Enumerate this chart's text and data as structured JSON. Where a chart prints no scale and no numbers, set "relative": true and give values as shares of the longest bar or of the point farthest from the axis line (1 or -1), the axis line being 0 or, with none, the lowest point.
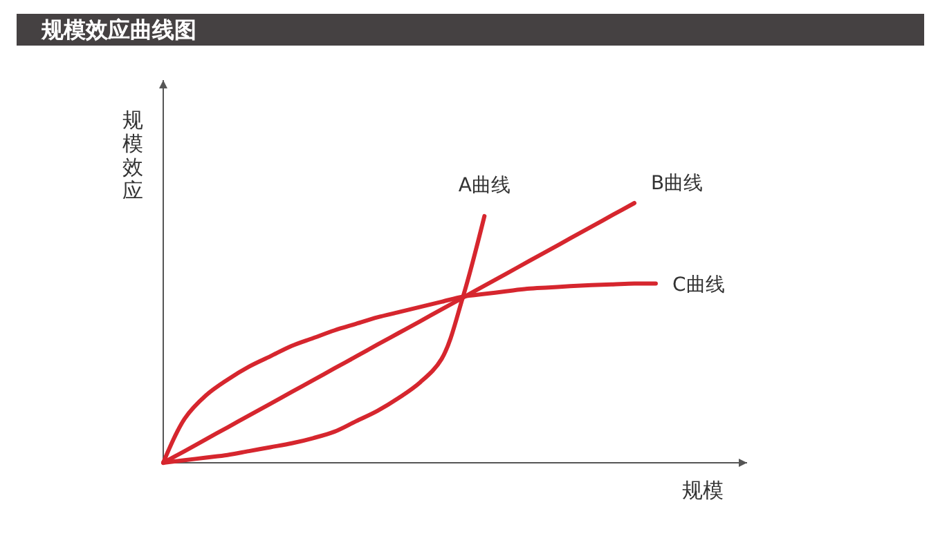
{
  "chart_data": {
    "type": "line",
    "title": "规模效应曲线图",
    "xlabel": "规模",
    "ylabel": "规模效应",
    "relative": true,
    "categories": [
      null,
      null,
      null,
      null,
      null,
      null,
      null,
      null,
      null,
      null,
      null,
      null,
      null,
      null,
      null,
      null,
      null,
      null,
      null,
      null,
      null,
      null,
      null,
      null
    ],
    "series": [
      {
        "name": "A曲线",
        "color": "#d6262e",
        "values": [
          0,
          0.01,
          0.02,
          0.03,
          0.045,
          0.06,
          0.075,
          0.095,
          0.12,
          0.16,
          0.2,
          0.25,
          0.31,
          0.4,
          0.64,
          0.95,
          null,
          null,
          null,
          null,
          null,
          null,
          null,
          null
        ]
      },
      {
        "name": "B曲线",
        "color": "#d6262e",
        "values": [
          0,
          0.045,
          0.091,
          0.136,
          0.182,
          0.227,
          0.273,
          0.318,
          0.364,
          0.409,
          0.455,
          0.5,
          0.545,
          0.591,
          0.636,
          0.682,
          0.727,
          0.773,
          0.818,
          0.864,
          0.909,
          0.955,
          1.0,
          null
        ]
      },
      {
        "name": "C曲线",
        "color": "#d6262e",
        "values": [
          0,
          0.17,
          0.26,
          0.32,
          0.37,
          0.41,
          0.45,
          0.48,
          0.51,
          0.535,
          0.56,
          0.58,
          0.6,
          0.62,
          0.64,
          0.65,
          0.66,
          0.67,
          0.675,
          0.68,
          0.684,
          0.687,
          0.69,
          0.69
        ]
      }
    ]
  }
}
